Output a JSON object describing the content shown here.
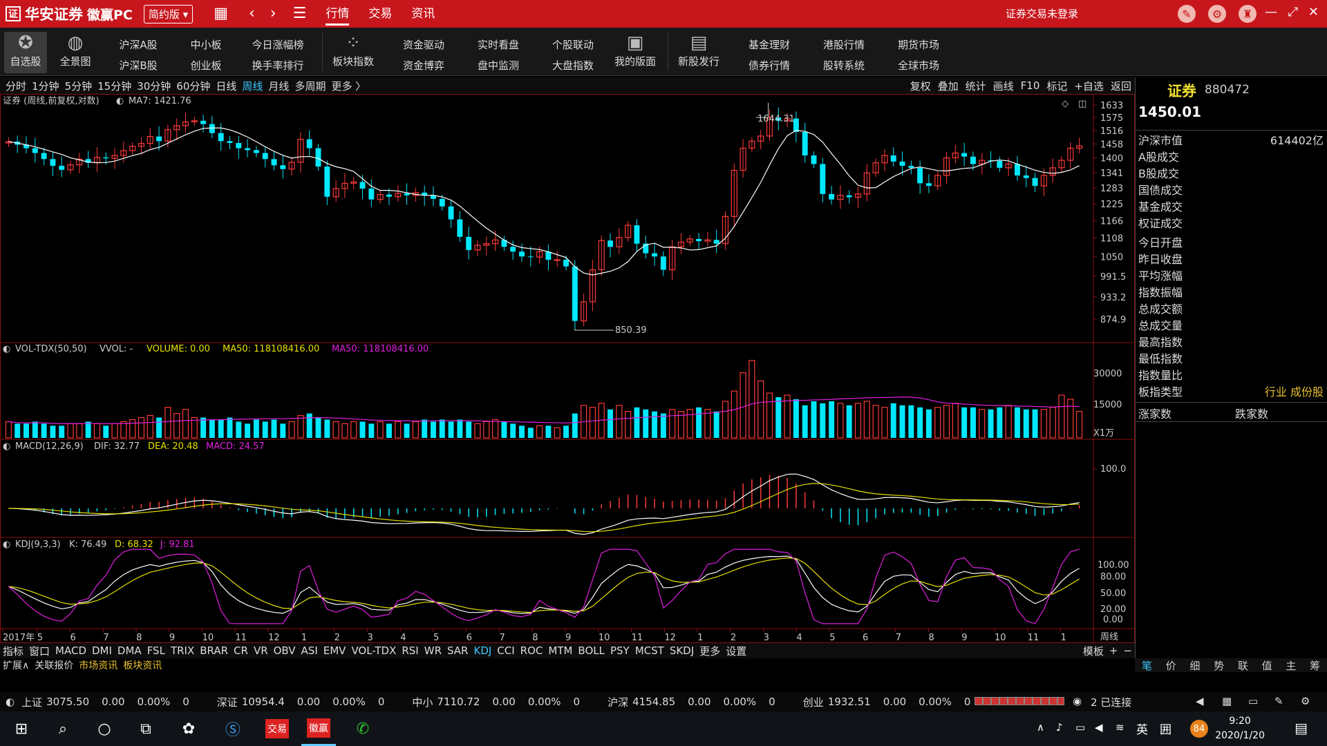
{
  "titlebar": {
    "brand": "华安证券",
    "product": "徽赢PC",
    "edition": "简约版",
    "menus": [
      "行情",
      "交易",
      "资讯"
    ],
    "login_status": "证券交易未登录"
  },
  "toolbar": {
    "watch": "自选股",
    "panorama": "全景图",
    "col1": [
      "沪深A股",
      "沪深B股"
    ],
    "col2": [
      "中小板",
      "创业板"
    ],
    "col3": [
      "今日涨幅榜",
      "换手率排行"
    ],
    "sector": "板块指数",
    "col4": [
      "资金驱动",
      "资金博弈"
    ],
    "col5": [
      "实时看盘",
      "盘中监测"
    ],
    "col6": [
      "个股联动",
      "大盘指数"
    ],
    "layout": "我的版面",
    "ipo": "新股发行",
    "col7": [
      "基金理财",
      "债券行情"
    ],
    "col8": [
      "港股行情",
      "股转系统"
    ],
    "col9": [
      "期货市场",
      "全球市场"
    ]
  },
  "periods": [
    "分时",
    "1分钟",
    "5分钟",
    "15分钟",
    "30分钟",
    "60分钟",
    "日线",
    "周线",
    "月线",
    "多周期",
    "更多 〉"
  ],
  "period_active": "周线",
  "chart_tools": [
    "复权",
    "叠加",
    "统计",
    "画线",
    "F10",
    "标记",
    "+自选",
    "返回"
  ],
  "chart_data": {
    "type": "candlestick",
    "title": "证券 (周线,前复权,对数)",
    "ma_label": "MA7: 1421.76",
    "high_label": "1644.31",
    "low_label": "850.39",
    "y_ticks": [
      "1633",
      "1575",
      "1516",
      "1458",
      "1400",
      "1341",
      "1283",
      "1225",
      "1166",
      "1108",
      "1050",
      "991.5",
      "933.2",
      "874.9"
    ],
    "closes": [
      1468,
      1455,
      1440,
      1420,
      1395,
      1368,
      1352,
      1372,
      1395,
      1380,
      1402,
      1398,
      1410,
      1430,
      1448,
      1460,
      1490,
      1470,
      1520,
      1538,
      1555,
      1560,
      1545,
      1505,
      1470,
      1462,
      1440,
      1432,
      1420,
      1395,
      1370,
      1355,
      1382,
      1478,
      1440,
      1365,
      1250,
      1280,
      1300,
      1305,
      1280,
      1240,
      1258,
      1250,
      1262,
      1255,
      1265,
      1255,
      1242,
      1215,
      1170,
      1112,
      1070,
      1085,
      1090,
      1102,
      1080,
      1065,
      1050,
      1048,
      1065,
      1040,
      1040,
      1020,
      870,
      920,
      1010,
      1100,
      1080,
      1110,
      1150,
      1090,
      1060,
      1050,
      1010,
      1080,
      1095,
      1105,
      1098,
      1102,
      1090,
      1180,
      1350,
      1440,
      1470,
      1492,
      1575,
      1560,
      1570,
      1510,
      1410,
      1375,
      1260,
      1240,
      1255,
      1248,
      1260,
      1340,
      1380,
      1410,
      1385,
      1368,
      1360,
      1300,
      1290,
      1330,
      1400,
      1420,
      1405,
      1375,
      1390,
      1388,
      1360,
      1375,
      1330,
      1320,
      1290,
      1330,
      1360,
      1390,
      1440,
      1450
    ],
    "ma7_axis": "1421.76",
    "volume": {
      "label": "VOL-TDX(50,50)",
      "vvol": "VVOL: -",
      "volume": "VOLUME: 0.00",
      "ma50a": "MA50: 118108416.00",
      "ma50b": "MA50: 118108416.00",
      "y_ticks": [
        "30000",
        "15000"
      ],
      "unit": "X1万",
      "values": [
        8,
        7,
        7,
        8,
        7,
        6,
        6,
        7,
        7,
        8,
        7,
        6,
        7,
        8,
        9,
        10,
        11,
        10,
        15,
        12,
        14,
        10,
        10,
        9,
        9,
        10,
        8,
        7,
        9,
        8,
        9,
        7,
        8,
        11,
        12,
        10,
        9,
        8,
        7,
        8,
        8,
        7,
        8,
        7,
        8,
        7,
        8,
        9,
        8,
        9,
        8,
        9,
        8,
        7,
        8,
        9,
        8,
        7,
        6,
        5,
        6,
        6,
        5,
        6,
        12,
        16,
        15,
        17,
        14,
        16,
        13,
        15,
        14,
        13,
        12,
        14,
        13,
        14,
        15,
        14,
        13,
        18,
        23,
        32,
        38,
        28,
        22,
        20,
        21,
        19,
        16,
        18,
        17,
        18,
        17,
        16,
        17,
        18,
        16,
        15,
        17,
        16,
        16,
        15,
        14,
        15,
        16,
        17,
        15,
        15,
        14,
        14,
        15,
        16,
        15,
        14,
        14,
        14,
        15,
        21,
        19,
        13
      ]
    },
    "macd": {
      "label": "MACD(12,26,9)",
      "dif": "DIF: 32.77",
      "dea": "DEA: 20.48",
      "macd": "MACD: 24.57",
      "y_tick": "100.0"
    },
    "kdj": {
      "label": "KDJ(9,3,3)",
      "k": "K: 76.49",
      "d": "D: 68.32",
      "j": "J: 92.81",
      "y_ticks": [
        "100.00",
        "80.00",
        "50.00",
        "20.00",
        "0.00"
      ]
    },
    "x_labels": [
      "2017年",
      "5",
      "6",
      "7",
      "8",
      "9",
      "10",
      "11",
      "12",
      "1",
      "2",
      "3",
      "4",
      "5",
      "6",
      "7",
      "8",
      "9",
      "10",
      "11",
      "12",
      "1",
      "2",
      "3",
      "4",
      "5",
      "6",
      "7",
      "8",
      "9",
      "10",
      "11",
      "1"
    ],
    "x_axis_name": "周线"
  },
  "rpanel": {
    "title": "证券",
    "code": "880472",
    "price": "1450.01",
    "rows": [
      {
        "k": "沪深市值",
        "v": "614402亿"
      },
      {
        "k": "A股成交",
        "v": ""
      },
      {
        "k": "B股成交",
        "v": ""
      },
      {
        "k": "国债成交",
        "v": ""
      },
      {
        "k": "基金成交",
        "v": ""
      },
      {
        "k": "权证成交",
        "v": ""
      },
      {
        "k": "今日开盘",
        "v": ""
      },
      {
        "k": "昨日收盘",
        "v": ""
      },
      {
        "k": "平均涨幅",
        "v": ""
      },
      {
        "k": "指数振幅",
        "v": ""
      },
      {
        "k": "总成交额",
        "v": ""
      },
      {
        "k": "总成交量",
        "v": ""
      },
      {
        "k": "最高指数",
        "v": ""
      },
      {
        "k": "最低指数",
        "v": ""
      },
      {
        "k": "指数量比",
        "v": ""
      },
      {
        "k": "板指类型",
        "v": "行业 成份股"
      }
    ],
    "rise": "涨家数",
    "fall": "跌家数"
  },
  "indicators": [
    "指标",
    "窗口",
    "MACD",
    "DMI",
    "DMA",
    "FSL",
    "TRIX",
    "BRAR",
    "CR",
    "VR",
    "OBV",
    "ASI",
    "EMV",
    "VOL-TDX",
    "RSI",
    "WR",
    "SAR",
    "KDJ",
    "CCI",
    "ROC",
    "MTM",
    "BOLL",
    "PSY",
    "MCST",
    "SKDJ",
    "更多",
    "设置"
  ],
  "indicator_active": "KDJ",
  "template_btn": "模板",
  "info_tabs": [
    "扩展∧",
    "关联报价",
    "市场资讯",
    "板块资讯"
  ],
  "right_tabs": [
    "笔",
    "价",
    "细",
    "势",
    "联",
    "值",
    "主",
    "筹"
  ],
  "indices": [
    {
      "name": "上证",
      "v": "3075.50",
      "c": "0.00",
      "p": "0.00%",
      "n": "0"
    },
    {
      "name": "深证",
      "v": "10954.4",
      "c": "0.00",
      "p": "0.00%",
      "n": "0"
    },
    {
      "name": "中小",
      "v": "7110.72",
      "c": "0.00",
      "p": "0.00%",
      "n": "0"
    },
    {
      "name": "沪深",
      "v": "4154.85",
      "c": "0.00",
      "p": "0.00%",
      "n": "0"
    },
    {
      "name": "创业",
      "v": "1932.51",
      "c": "0.00",
      "p": "0.00%",
      "n": "0"
    }
  ],
  "connection": "2 已连接",
  "taskbar": {
    "time": "9:20",
    "date": "2020/1/20",
    "ime": "英",
    "badge": "84"
  },
  "colors": {
    "up": "#ff3a3a",
    "down": "#00e8ff",
    "ma": "#ffffff",
    "dea": "#e8e000",
    "j": "#e020e0",
    "title_bg": "#c8161d"
  }
}
